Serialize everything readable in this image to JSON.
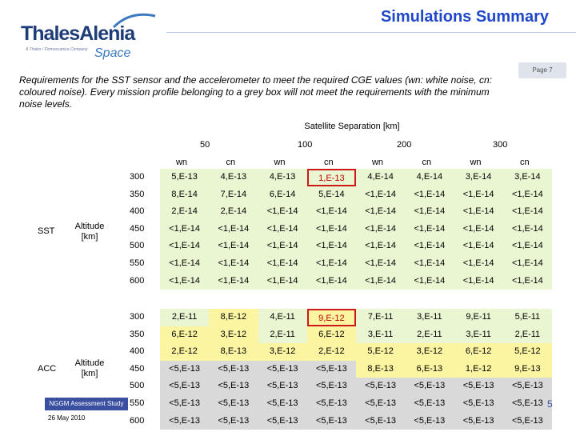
{
  "logo": {
    "main": "ThalesAlenia",
    "sub": "A Thales / Finmeccanica Company",
    "space": "Space"
  },
  "header": {
    "title": "Simulations Summary"
  },
  "page_tab": "Page 7",
  "intro": "Requirements for the SST sensor and the accelerometer to meet the required CGE values (wn: white noise, cn: coloured noise). Every mission profile belonging to a grey box will not meet the requirements with the minimum noise levels.",
  "table": {
    "sep_title": "Satellite Separation [km]",
    "separations": [
      "50",
      "100",
      "200",
      "300"
    ],
    "col_headers": [
      "wn",
      "cn",
      "wn",
      "cn",
      "wn",
      "cn",
      "wn",
      "cn"
    ],
    "colors": {
      "green": "#eaf6d2",
      "yellow": "#fbf5a2",
      "grey": "#d9d9d9",
      "highlight_border": "#cc1a1a"
    },
    "groups": [
      {
        "label": "SST",
        "param": "Altitude [km]",
        "rows": [
          {
            "alt": "300",
            "cells": [
              "5,E-13",
              "4,E-13",
              "4,E-13",
              "1,E-13",
              "4,E-14",
              "4,E-14",
              "3,E-14",
              "3,E-14"
            ],
            "tones": [
              "g",
              "g",
              "g",
              "g",
              "g",
              "g",
              "g",
              "g"
            ]
          },
          {
            "alt": "350",
            "cells": [
              "8,E-14",
              "7,E-14",
              "6,E-14",
              "5,E-14",
              "<1,E-14",
              "<1,E-14",
              "<1,E-14",
              "<1,E-14"
            ],
            "tones": [
              "g",
              "g",
              "g",
              "g",
              "g",
              "g",
              "g",
              "g"
            ]
          },
          {
            "alt": "400",
            "cells": [
              "2,E-14",
              "2,E-14",
              "<1,E-14",
              "<1,E-14",
              "<1,E-14",
              "<1,E-14",
              "<1,E-14",
              "<1,E-14"
            ],
            "tones": [
              "g",
              "g",
              "g",
              "g",
              "g",
              "g",
              "g",
              "g"
            ]
          },
          {
            "alt": "450",
            "cells": [
              "<1,E-14",
              "<1,E-14",
              "<1,E-14",
              "<1,E-14",
              "<1,E-14",
              "<1,E-14",
              "<1,E-14",
              "<1,E-14"
            ],
            "tones": [
              "g",
              "g",
              "g",
              "g",
              "g",
              "g",
              "g",
              "g"
            ]
          },
          {
            "alt": "500",
            "cells": [
              "<1,E-14",
              "<1,E-14",
              "<1,E-14",
              "<1,E-14",
              "<1,E-14",
              "<1,E-14",
              "<1,E-14",
              "<1,E-14"
            ],
            "tones": [
              "g",
              "g",
              "g",
              "g",
              "g",
              "g",
              "g",
              "g"
            ]
          },
          {
            "alt": "550",
            "cells": [
              "<1,E-14",
              "<1,E-14",
              "<1,E-14",
              "<1,E-14",
              "<1,E-14",
              "<1,E-14",
              "<1,E-14",
              "<1,E-14"
            ],
            "tones": [
              "g",
              "g",
              "g",
              "g",
              "g",
              "g",
              "g",
              "g"
            ]
          },
          {
            "alt": "600",
            "cells": [
              "<1,E-14",
              "<1,E-14",
              "<1,E-14",
              "<1,E-14",
              "<1,E-14",
              "<1,E-14",
              "<1,E-14",
              "<1,E-14"
            ],
            "tones": [
              "g",
              "g",
              "g",
              "g",
              "g",
              "g",
              "g",
              "g"
            ]
          }
        ],
        "highlight": {
          "row": 0,
          "col": 3
        }
      },
      {
        "label": "ACC",
        "param": "Altitude [km]",
        "rows": [
          {
            "alt": "300",
            "cells": [
              "2,E-11",
              "8,E-12",
              "4,E-11",
              "9,E-12",
              "7,E-11",
              "3,E-11",
              "9,E-11",
              "5,E-11"
            ],
            "tones": [
              "g",
              "y",
              "g",
              "y",
              "g",
              "g",
              "g",
              "g"
            ]
          },
          {
            "alt": "350",
            "cells": [
              "6,E-12",
              "3,E-12",
              "2,E-11",
              "6,E-12",
              "3,E-11",
              "2,E-11",
              "3,E-11",
              "2,E-11"
            ],
            "tones": [
              "y",
              "y",
              "g",
              "y",
              "g",
              "g",
              "g",
              "g"
            ]
          },
          {
            "alt": "400",
            "cells": [
              "2,E-12",
              "8,E-13",
              "3,E-12",
              "2,E-12",
              "5,E-12",
              "3,E-12",
              "6,E-12",
              "5,E-12"
            ],
            "tones": [
              "y",
              "y",
              "y",
              "y",
              "y",
              "y",
              "y",
              "y"
            ]
          },
          {
            "alt": "450",
            "cells": [
              "<5,E-13",
              "<5,E-13",
              "<5,E-13",
              "<5,E-13",
              "8,E-13",
              "6,E-13",
              "1,E-12",
              "9,E-13"
            ],
            "tones": [
              "d",
              "d",
              "d",
              "d",
              "y",
              "y",
              "y",
              "y"
            ]
          },
          {
            "alt": "500",
            "cells": [
              "<5,E-13",
              "<5,E-13",
              "<5,E-13",
              "<5,E-13",
              "<5,E-13",
              "<5,E-13",
              "<5,E-13",
              "<5,E-13"
            ],
            "tones": [
              "d",
              "d",
              "d",
              "d",
              "d",
              "d",
              "d",
              "d"
            ]
          },
          {
            "alt": "550",
            "cells": [
              "<5,E-13",
              "<5,E-13",
              "<5,E-13",
              "<5,E-13",
              "<5,E-13",
              "<5,E-13",
              "<5,E-13",
              "<5,E-13"
            ],
            "tones": [
              "d",
              "d",
              "d",
              "d",
              "d",
              "d",
              "d",
              "d"
            ]
          },
          {
            "alt": "600",
            "cells": [
              "<5,E-13",
              "<5,E-13",
              "<5,E-13",
              "<5,E-13",
              "<5,E-13",
              "<5,E-13",
              "<5,E-13",
              "<5,E-13"
            ],
            "tones": [
              "d",
              "d",
              "d",
              "d",
              "d",
              "d",
              "d",
              "d"
            ]
          }
        ],
        "highlight": {
          "row": 0,
          "col": 3
        }
      }
    ]
  },
  "footer": {
    "study": "NGGM Assessment Study",
    "date": "26 May 2010",
    "edge_glyph": "5"
  }
}
